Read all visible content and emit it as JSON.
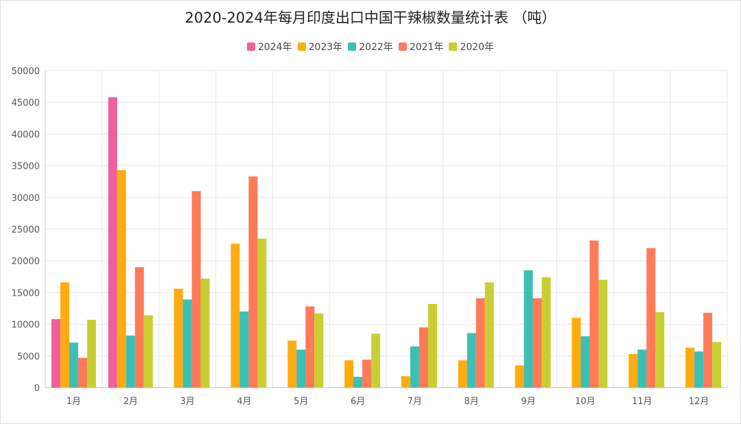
{
  "chart_data": {
    "type": "bar",
    "title": "2020-2024年每月印度出口中国干辣椒数量统计表 （吨）",
    "xlabel": "",
    "ylabel": "",
    "ylim": [
      0,
      50000
    ],
    "yticks": [
      0,
      5000,
      10000,
      15000,
      20000,
      25000,
      30000,
      35000,
      40000,
      45000,
      50000
    ],
    "grid": true,
    "legend_position": "top-center",
    "categories": [
      "1月",
      "2月",
      "3月",
      "4月",
      "5月",
      "6月",
      "7月",
      "8月",
      "9月",
      "10月",
      "11月",
      "12月"
    ],
    "series": [
      {
        "name": "2024年",
        "color": "#f0609a",
        "values": [
          10800,
          45800,
          null,
          null,
          null,
          null,
          null,
          null,
          null,
          null,
          null,
          null
        ]
      },
      {
        "name": "2023年",
        "color": "#ffac10",
        "values": [
          16600,
          34300,
          15600,
          22700,
          7400,
          4300,
          1800,
          4300,
          3500,
          11000,
          5300,
          6300
        ]
      },
      {
        "name": "2022年",
        "color": "#3dbfb5",
        "values": [
          7100,
          8200,
          13900,
          12000,
          6000,
          1700,
          6500,
          8600,
          18500,
          8100,
          6000,
          5700
        ]
      },
      {
        "name": "2021年",
        "color": "#ff7a56",
        "values": [
          4700,
          19000,
          31000,
          33300,
          12800,
          4400,
          9500,
          14100,
          14100,
          23200,
          22000,
          11800
        ]
      },
      {
        "name": "2020年",
        "color": "#c9cf32",
        "values": [
          10700,
          11400,
          17200,
          23500,
          11700,
          8500,
          13200,
          16600,
          17400,
          17000,
          11900,
          7200
        ]
      }
    ]
  }
}
